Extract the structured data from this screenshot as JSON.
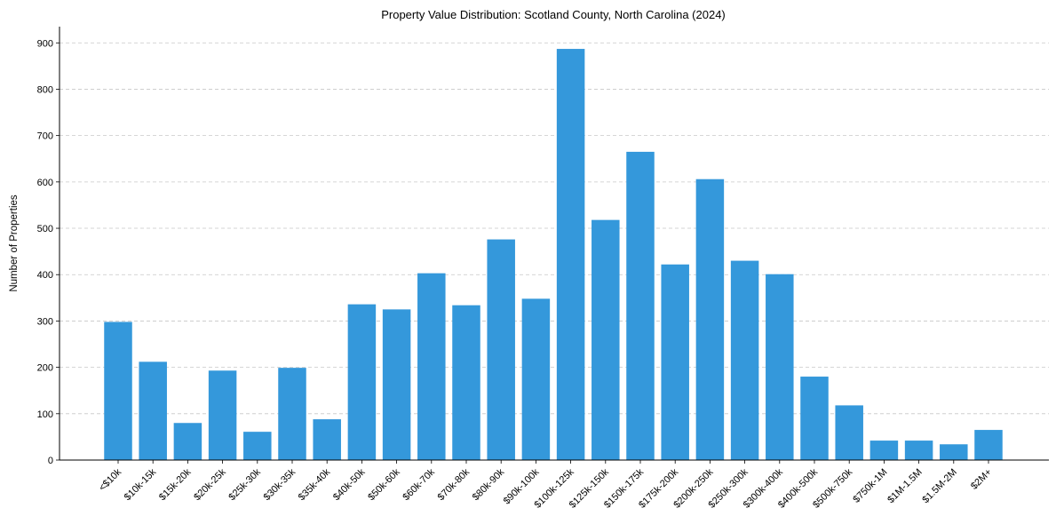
{
  "chart_data": {
    "type": "bar",
    "title": "Property Value Distribution: Scotland County, North Carolina (2024)",
    "xlabel": "",
    "ylabel": "Number of Properties",
    "categories": [
      "<$10k",
      "$10k-15k",
      "$15k-20k",
      "$20k-25k",
      "$25k-30k",
      "$30k-35k",
      "$35k-40k",
      "$40k-50k",
      "$50k-60k",
      "$60k-70k",
      "$70k-80k",
      "$80k-90k",
      "$90k-100k",
      "$100k-125k",
      "$125k-150k",
      "$150k-175k",
      "$175k-200k",
      "$200k-250k",
      "$250k-300k",
      "$300k-400k",
      "$400k-500k",
      "$500k-750k",
      "$750k-1M",
      "$1M-1.5M",
      "$1.5M-2M",
      "$2M+"
    ],
    "values": [
      298,
      212,
      80,
      193,
      61,
      199,
      88,
      336,
      325,
      403,
      334,
      476,
      348,
      887,
      518,
      665,
      422,
      606,
      430,
      401,
      180,
      118,
      42,
      42,
      34,
      65
    ],
    "ylim": [
      0,
      935
    ],
    "yticks": [
      0,
      100,
      200,
      300,
      400,
      500,
      600,
      700,
      800,
      900
    ],
    "grid": "y-dashed",
    "bar_color": "#3498db"
  }
}
